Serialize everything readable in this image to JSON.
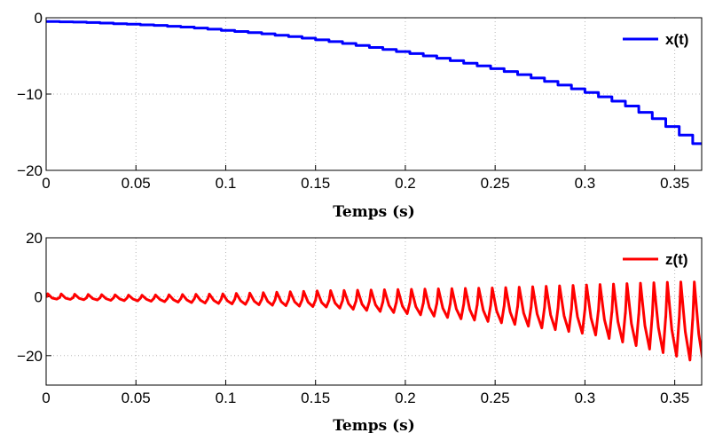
{
  "chart_data": [
    {
      "type": "line",
      "xlabel": "Temps (s)",
      "ylabel": "",
      "xlim": [
        0,
        0.365
      ],
      "ylim": [
        -20,
        0
      ],
      "xticks": [
        "0",
        "0.05",
        "0.1",
        "0.15",
        "0.2",
        "0.25",
        "0.3",
        "0.35"
      ],
      "yticks": [
        "0",
        "−10",
        "−20"
      ],
      "grid": true,
      "legend": "top-right",
      "series": [
        {
          "name": "x(t)",
          "color": "#0000ff",
          "x": [
            0,
            0.02,
            0.04,
            0.06,
            0.08,
            0.1,
            0.12,
            0.14,
            0.16,
            0.18,
            0.2,
            0.22,
            0.24,
            0.26,
            0.28,
            0.3,
            0.32,
            0.34,
            0.36,
            0.365
          ],
          "y": [
            -0.5,
            -0.6,
            -0.8,
            -1.0,
            -1.3,
            -1.7,
            -2.1,
            -2.6,
            -3.2,
            -3.9,
            -4.6,
            -5.4,
            -6.3,
            -7.3,
            -8.5,
            -9.8,
            -11.3,
            -13.5,
            -16.5,
            -18.5
          ]
        }
      ]
    },
    {
      "type": "line",
      "xlabel": "Temps (s)",
      "ylabel": "",
      "xlim": [
        0,
        0.365
      ],
      "ylim": [
        -30,
        20
      ],
      "xticks": [
        "0",
        "0.05",
        "0.1",
        "0.15",
        "0.2",
        "0.25",
        "0.3",
        "0.35"
      ],
      "yticks": [
        "20",
        "0",
        "−20"
      ],
      "grid": true,
      "legend": "top-right",
      "series": [
        {
          "name": "z(t)",
          "color": "#ff0000",
          "oscillation": {
            "period": 0.0075,
            "x": [
              0,
              0.05,
              0.1,
              0.15,
              0.2,
              0.25,
              0.3,
              0.35,
              0.365
            ],
            "upper": [
              1.0,
              0.5,
              1.0,
              2.0,
              2.5,
              3.0,
              4.0,
              5.0,
              5.0
            ],
            "lower": [
              -0.8,
              -1.5,
              -2.5,
              -3.5,
              -6.0,
              -9.0,
              -13.0,
              -21.0,
              -24.0
            ]
          }
        }
      ]
    }
  ]
}
